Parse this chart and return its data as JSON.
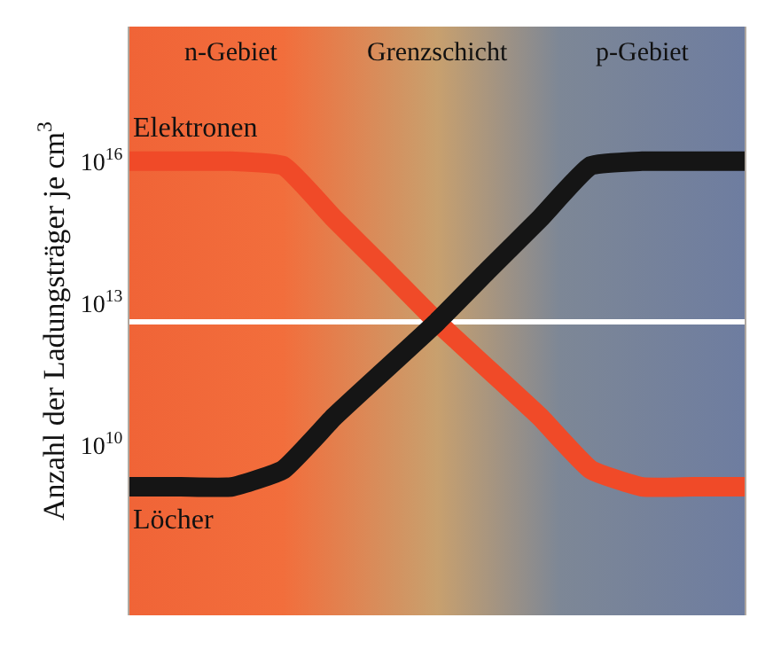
{
  "chart_data": {
    "type": "line",
    "ylabel": "Anzahl der Ladungsträger je cm$^{3}$",
    "log": "y",
    "categories": [
      null,
      null,
      null,
      null,
      null,
      null,
      null,
      null,
      null,
      null,
      null,
      null,
      null
    ],
    "series": [
      {
        "name": "Elektronen",
        "color": "#f04a28",
        "values": [
          1e+16,
          1e+16,
          1e+16,
          8000000000000000.0,
          600000000000000.0,
          50000000000000.0,
          4000000000000.0,
          400000000000.0,
          40000000000.0,
          3000000000.0,
          1300000000.0,
          1300000000.0,
          1300000000.0
        ]
      },
      {
        "name": "Löcher",
        "color": "#151515",
        "values": [
          1300000000.0,
          1300000000.0,
          1300000000.0,
          3000000000.0,
          40000000000.0,
          400000000000.0,
          4000000000000.0,
          50000000000000.0,
          600000000000000.0,
          8000000000000000.0,
          1e+16,
          1e+16,
          1e+16
        ]
      }
    ],
    "ylim": [
      2500000.0,
      7e+18
    ],
    "yticks": [
      {
        "value": 10000000000.0,
        "label": "10$^{10}$"
      },
      {
        "value": 10000000000000.0,
        "label": "10$^{13}$"
      },
      {
        "value": 1e+16,
        "label": "10$^{16}$"
      }
    ],
    "tick_labels": "y",
    "grid": false,
    "legend": false,
    "line_style": "solid",
    "ref_lines": [
      {
        "axis": "y",
        "value": 4000000000000.0,
        "color": "#ffffff"
      }
    ],
    "annotations": [
      "n-Gebiet",
      "Grenzschicht",
      "p-Gebiet"
    ]
  }
}
